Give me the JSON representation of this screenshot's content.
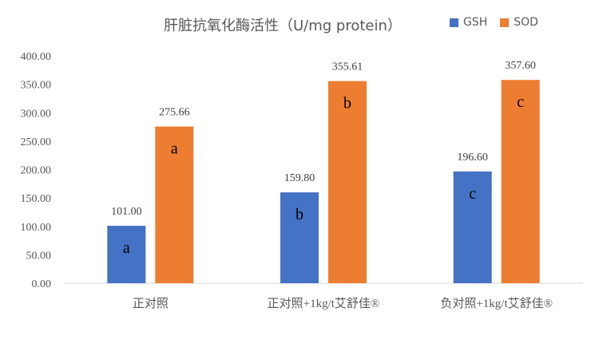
{
  "chart_data": {
    "type": "bar",
    "title": "肝脏抗氧化酶活性（U/mg protein）",
    "categories": [
      "正对照",
      "正对照+1kg/t艾舒佳®",
      "负对照+1kg/t艾舒佳®"
    ],
    "series": [
      {
        "name": "GSH",
        "color": "#4472C4",
        "values": [
          101.0,
          159.8,
          196.6
        ],
        "letters": [
          "a",
          "b",
          "c"
        ]
      },
      {
        "name": "SOD",
        "color": "#ED7D31",
        "values": [
          275.66,
          355.61,
          357.6
        ],
        "letters": [
          "a",
          "b",
          "c"
        ]
      }
    ],
    "ylim": [
      0,
      400
    ],
    "yticks": [
      "0.00",
      "50.00",
      "100.00",
      "150.00",
      "200.00",
      "250.00",
      "300.00",
      "350.00",
      "400.00"
    ],
    "value_labels": [
      [
        "101.00",
        "159.80",
        "196.60"
      ],
      [
        "275.66",
        "355.61",
        "357.60"
      ]
    ],
    "legend_position": "top-right",
    "grid": false
  }
}
